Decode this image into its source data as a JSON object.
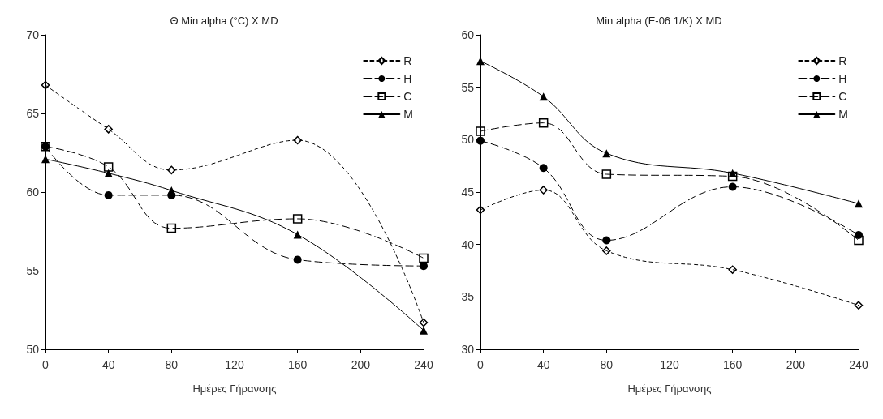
{
  "chart_data": [
    {
      "type": "line",
      "title": "Θ Min alpha (°C) X MD",
      "xlabel": "Ημέρες Γήρανσης",
      "x": [
        0,
        40,
        80,
        160,
        240
      ],
      "xlim": [
        0,
        240
      ],
      "xticks": [
        0,
        40,
        80,
        120,
        160,
        200,
        240
      ],
      "ylim": [
        50,
        70
      ],
      "yticks": [
        50,
        55,
        60,
        65,
        70
      ],
      "grid": false,
      "legend": "top right",
      "series": [
        {
          "name": "R",
          "color": "#000000",
          "marker": "diamond",
          "line_style": "dotted",
          "values": [
            66.8,
            64.0,
            61.4,
            63.3,
            51.7
          ]
        },
        {
          "name": "H",
          "color": "#000000",
          "marker": "circle",
          "line_style": "dashed",
          "values": [
            62.9,
            59.8,
            59.8,
            55.7,
            55.3
          ]
        },
        {
          "name": "C",
          "color": "#000000",
          "marker": "square",
          "line_style": "dashed",
          "values": [
            62.9,
            61.6,
            57.7,
            58.3,
            55.8
          ]
        },
        {
          "name": "M",
          "color": "#000000",
          "marker": "triangle",
          "line_style": "solid",
          "values": [
            62.1,
            61.2,
            60.1,
            57.3,
            51.2
          ]
        }
      ]
    },
    {
      "type": "line",
      "title": "Min alpha (E-06 1/K) X MD",
      "xlabel": "Ημέρες Γήρανσης",
      "x": [
        0,
        40,
        80,
        160,
        240
      ],
      "xlim": [
        0,
        240
      ],
      "xticks": [
        0,
        40,
        80,
        120,
        160,
        200,
        240
      ],
      "ylim": [
        30,
        60
      ],
      "yticks": [
        30,
        35,
        40,
        45,
        50,
        55,
        60
      ],
      "grid": false,
      "legend": "top right",
      "series": [
        {
          "name": "R",
          "color": "#000000",
          "marker": "diamond",
          "line_style": "dotted",
          "values": [
            43.3,
            45.2,
            39.4,
            37.6,
            34.2
          ]
        },
        {
          "name": "H",
          "color": "#000000",
          "marker": "circle",
          "line_style": "dashed",
          "values": [
            49.9,
            47.3,
            40.4,
            45.5,
            40.9
          ]
        },
        {
          "name": "C",
          "color": "#000000",
          "marker": "square",
          "line_style": "dashed",
          "values": [
            50.8,
            51.6,
            46.7,
            46.5,
            40.4
          ]
        },
        {
          "name": "M",
          "color": "#000000",
          "marker": "triangle",
          "line_style": "solid",
          "values": [
            57.5,
            54.1,
            48.7,
            46.8,
            43.9
          ]
        }
      ]
    }
  ]
}
